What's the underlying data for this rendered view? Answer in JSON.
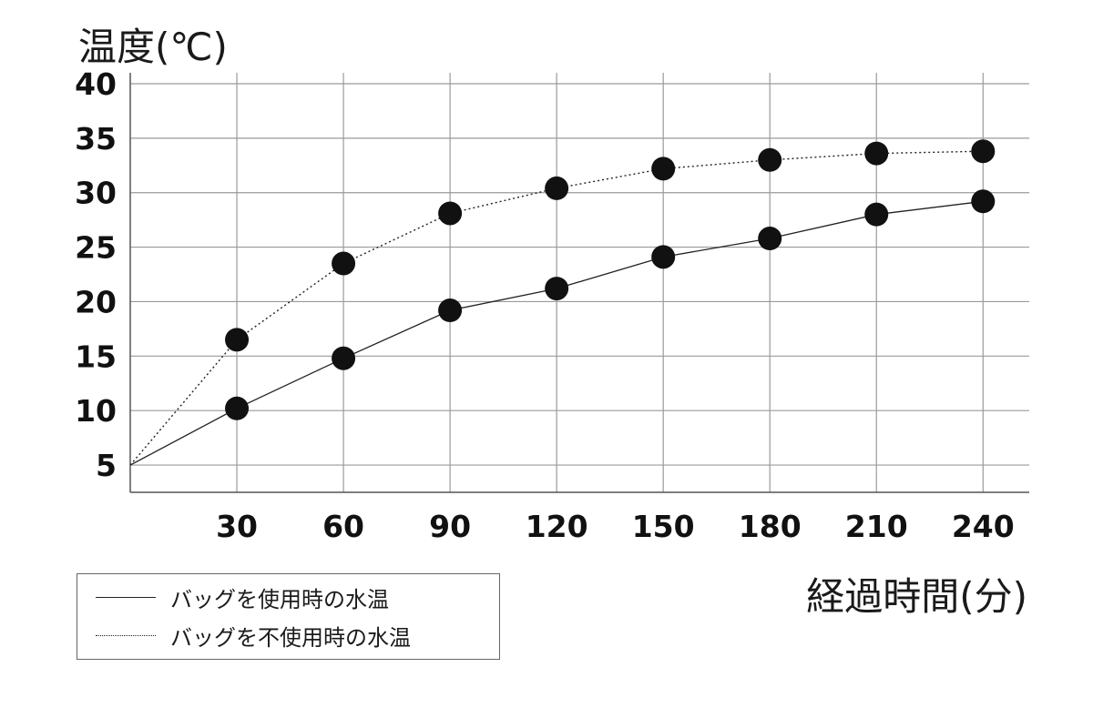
{
  "chart_data": {
    "type": "line",
    "ylabel": "温度(℃)",
    "xlabel": "経過時間(分)",
    "x": [
      0,
      30,
      60,
      90,
      120,
      150,
      180,
      210,
      240
    ],
    "x_tick_labels": [
      "30",
      "60",
      "90",
      "120",
      "150",
      "180",
      "210",
      "240"
    ],
    "y_tick_labels": [
      "5",
      "10",
      "15",
      "20",
      "25",
      "30",
      "35",
      "40"
    ],
    "xlim": [
      0,
      253
    ],
    "ylim": [
      2.5,
      41
    ],
    "grid": true,
    "series": [
      {
        "name": "バッグを使用時の水温",
        "line_style": "solid",
        "marker_x": [
          30,
          60,
          90,
          120,
          150,
          180,
          210,
          240
        ],
        "values": [
          5.0,
          10.2,
          14.8,
          19.2,
          21.2,
          24.1,
          25.8,
          28.0,
          29.2
        ]
      },
      {
        "name": "バッグを不使用時の水温",
        "line_style": "dotted",
        "marker_x": [
          30,
          60,
          90,
          120,
          150,
          180,
          210,
          240
        ],
        "values": [
          5.0,
          16.5,
          23.5,
          28.1,
          30.4,
          32.2,
          33.0,
          33.6,
          33.8
        ]
      }
    ],
    "legend_position": "bottom-left",
    "colors": {
      "line": "#222222",
      "marker": "#111111",
      "grid": "#9a9a9a",
      "axis": "#555555"
    }
  }
}
